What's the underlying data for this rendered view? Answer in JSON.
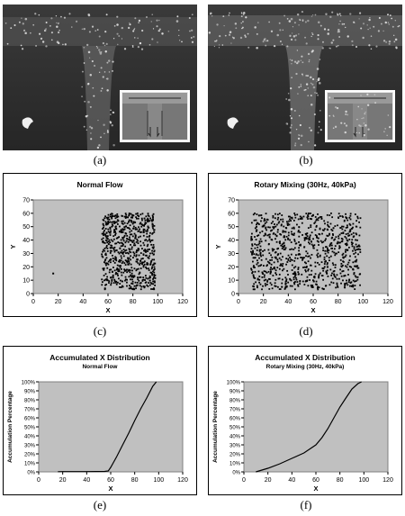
{
  "captions": {
    "a": "(a)",
    "b": "(b)",
    "c": "(c)",
    "d": "(d)",
    "e": "(e)",
    "f": "(f)"
  },
  "chart_data": [
    {
      "id": "c",
      "type": "scatter",
      "title": "Normal Flow",
      "xlabel": "X",
      "ylabel": "Y",
      "xlim": [
        0,
        120
      ],
      "ylim": [
        0,
        70
      ],
      "xticks": [
        0,
        20,
        40,
        60,
        80,
        100,
        120
      ],
      "yticks": [
        0,
        10,
        20,
        30,
        40,
        50,
        60,
        70
      ],
      "grid": false,
      "outlier_points": [
        [
          16,
          15
        ]
      ],
      "cluster": {
        "x_range": [
          55,
          98
        ],
        "y_range": [
          3,
          60
        ],
        "count": 700
      }
    },
    {
      "id": "d",
      "type": "scatter",
      "title": "Rotary Mixing (30Hz, 40kPa)",
      "xlabel": "X",
      "ylabel": "Y",
      "xlim": [
        0,
        120
      ],
      "ylim": [
        0,
        70
      ],
      "xticks": [
        0,
        20,
        40,
        60,
        80,
        100,
        120
      ],
      "yticks": [
        0,
        10,
        20,
        30,
        40,
        50,
        60,
        70
      ],
      "grid": false,
      "cluster": {
        "x_range": [
          10,
          98
        ],
        "y_range": [
          3,
          60
        ],
        "count": 900
      }
    },
    {
      "id": "e",
      "type": "line",
      "title": "Accumulated X Distribution",
      "subtitle": "Normal Flow",
      "xlabel": "X",
      "ylabel": "Accumulation Percentage",
      "xlim": [
        0,
        120
      ],
      "ylim": [
        0,
        100
      ],
      "xticks": [
        0,
        20,
        40,
        60,
        80,
        100,
        120
      ],
      "yticks": [
        "0%",
        "10%",
        "20%",
        "30%",
        "40%",
        "50%",
        "60%",
        "70%",
        "80%",
        "90%",
        "100%"
      ],
      "x": [
        16,
        20,
        40,
        55,
        58,
        60,
        65,
        70,
        75,
        80,
        85,
        90,
        95,
        98
      ],
      "y": [
        0.2,
        0.3,
        0.3,
        0.5,
        1,
        5,
        17,
        30,
        43,
        57,
        70,
        82,
        95,
        100
      ]
    },
    {
      "id": "f",
      "type": "line",
      "title": "Accumulated X Distribution",
      "subtitle": "Rotary Mixing (30Hz, 40kPa)",
      "xlabel": "X",
      "ylabel": "Accumulation Percentage",
      "xlim": [
        0,
        120
      ],
      "ylim": [
        0,
        100
      ],
      "xticks": [
        0,
        20,
        40,
        60,
        80,
        100,
        120
      ],
      "yticks": [
        "0%",
        "10%",
        "20%",
        "30%",
        "40%",
        "50%",
        "60%",
        "70%",
        "80%",
        "90%",
        "100%"
      ],
      "x": [
        10,
        20,
        30,
        40,
        50,
        60,
        65,
        70,
        75,
        80,
        85,
        90,
        95,
        98
      ],
      "y": [
        0,
        4,
        9,
        15,
        21,
        30,
        38,
        48,
        60,
        72,
        82,
        92,
        98,
        100
      ]
    }
  ]
}
